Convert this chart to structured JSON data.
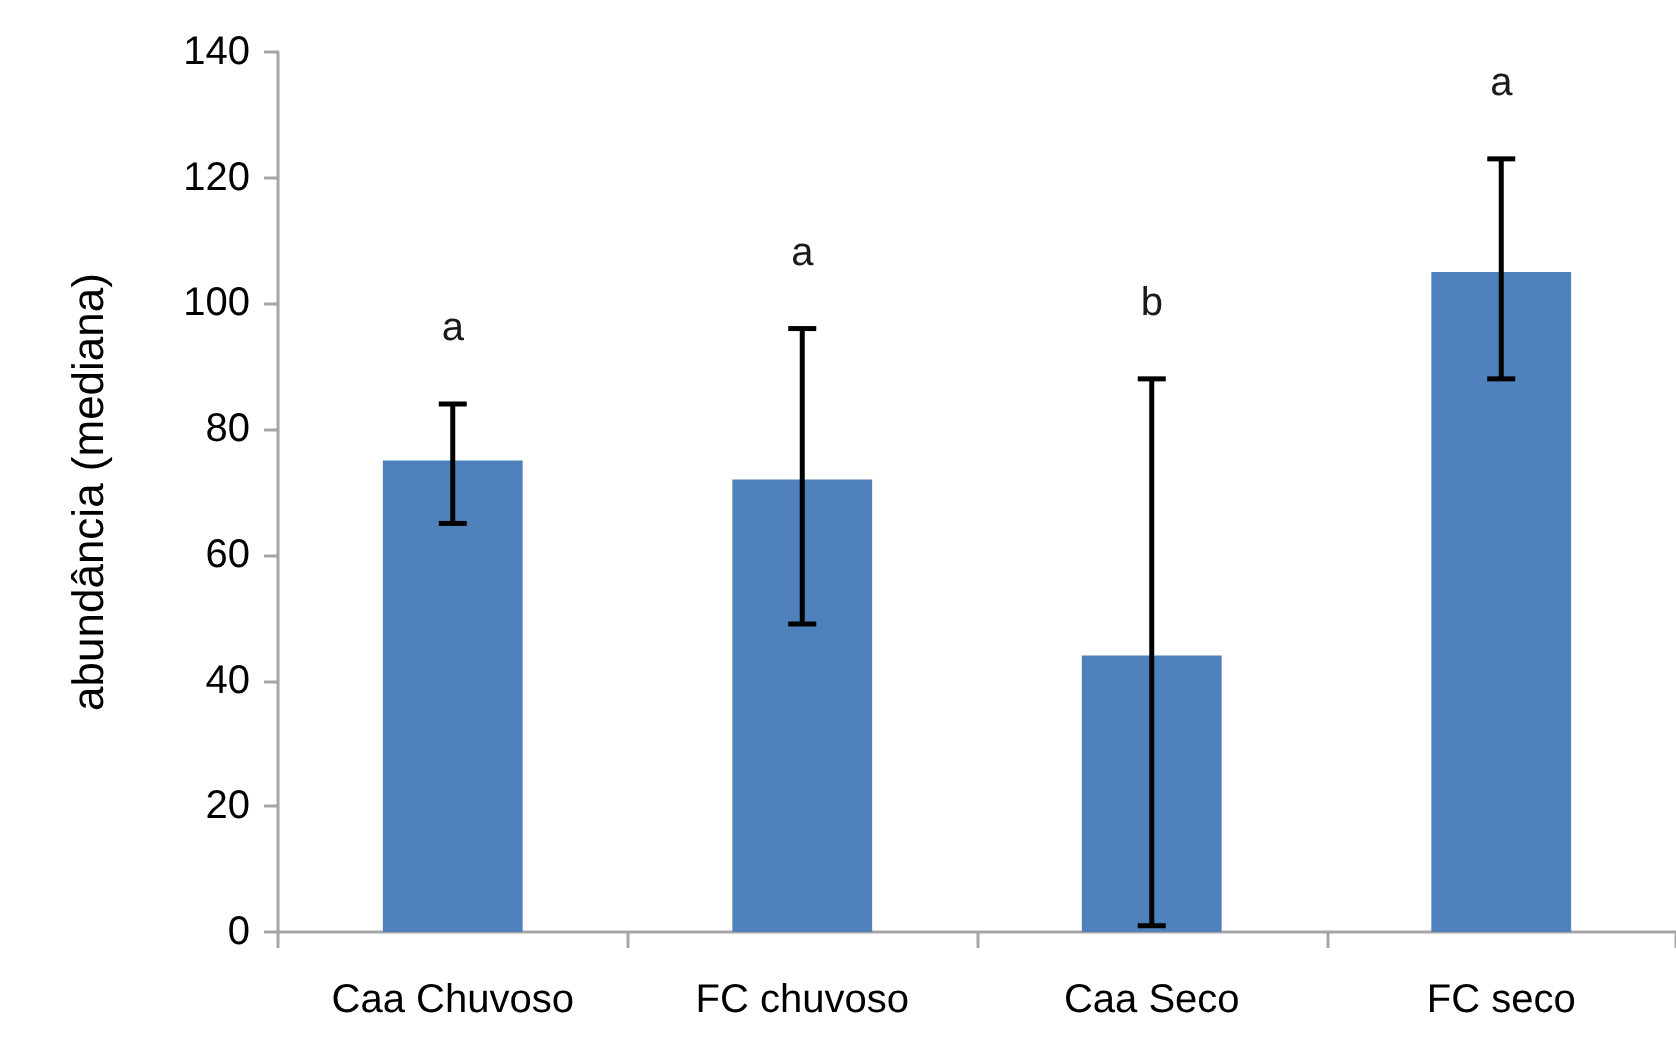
{
  "chart_data": {
    "type": "bar",
    "ylabel": "abundância (mediana)",
    "categories": [
      "Caa Chuvoso",
      "FC chuvoso",
      "Caa Seco",
      "FC seco"
    ],
    "values": [
      75,
      72,
      44,
      105
    ],
    "color": "#4f81bd",
    "errors": [
      [
        65,
        84
      ],
      [
        49,
        96
      ],
      [
        1,
        88
      ],
      [
        88,
        123
      ]
    ],
    "ylim": [
      0,
      140
    ],
    "yticks": [
      0,
      20,
      40,
      60,
      80,
      100,
      120,
      140
    ],
    "annotations": [
      "a",
      "a",
      "b",
      "a"
    ]
  }
}
